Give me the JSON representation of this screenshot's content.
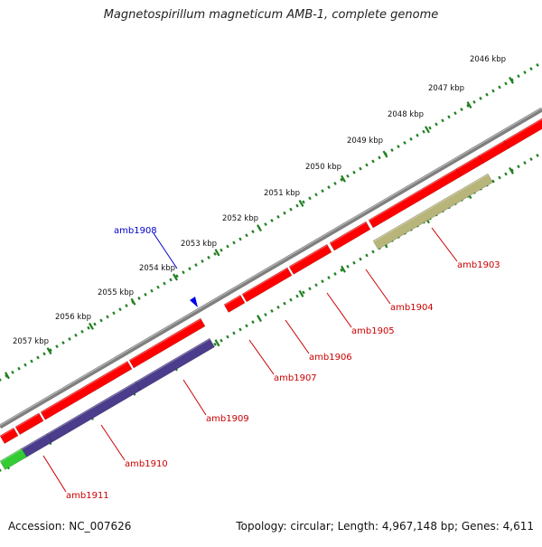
{
  "title": "Magnetospirillum magneticum AMB-1, complete genome",
  "footer": {
    "accession": "Accession: NC_007626",
    "summary": "Topology: circular; Length: 4,967,148 bp; Genes: 4,611"
  },
  "colors": {
    "backbone": "#7f7f7f",
    "ticks": "#1f7f1f",
    "gene_forward": "#ff0000",
    "gene_reverse_blue": "#4b3c8c",
    "gene_khaki": "#b8b57a",
    "gene_green": "#33cc33",
    "label_red": "#cc0000",
    "label_blue": "#0000cc"
  },
  "scale_labels": [
    "2046 kbp",
    "2047 kbp",
    "2048 kbp",
    "2049 kbp",
    "2050 kbp",
    "2051 kbp",
    "2052 kbp",
    "2053 kbp",
    "2054 kbp",
    "2055 kbp",
    "2056 kbp",
    "2057 kbp"
  ],
  "gene_labels": [
    {
      "text": "amb1903",
      "color": "red"
    },
    {
      "text": "amb1904",
      "color": "red"
    },
    {
      "text": "amb1905",
      "color": "red"
    },
    {
      "text": "amb1906",
      "color": "red"
    },
    {
      "text": "amb1907",
      "color": "red"
    },
    {
      "text": "amb1908",
      "color": "blue"
    },
    {
      "text": "amb1909",
      "color": "red"
    },
    {
      "text": "amb1910",
      "color": "red"
    },
    {
      "text": "amb1911",
      "color": "red"
    }
  ]
}
